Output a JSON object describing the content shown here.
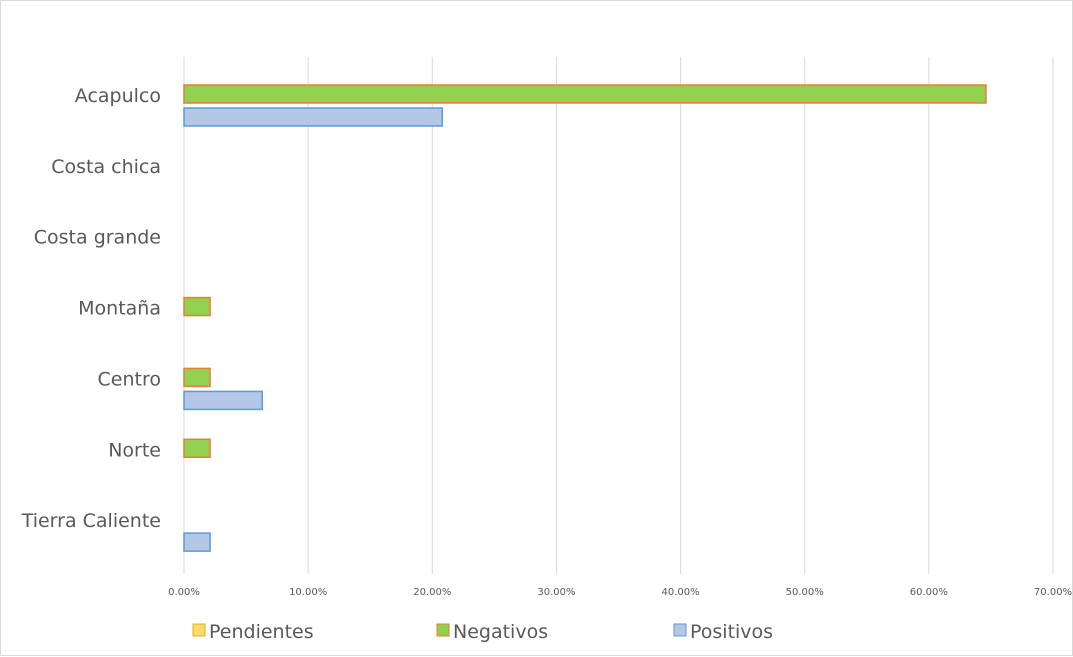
{
  "chart_data": {
    "type": "bar",
    "orientation": "horizontal",
    "categories": [
      "Acapulco",
      "Costa chica",
      "Costa grande",
      "Montaña",
      "Centro",
      "Norte",
      "Tierra Caliente"
    ],
    "series": [
      {
        "name": "Pendientes",
        "values": [
          0,
          0,
          0,
          0,
          0,
          0,
          0
        ],
        "color": "#FFD966",
        "border": "#E0B020"
      },
      {
        "name": "Negativos",
        "values": [
          0.646,
          0,
          0,
          0.021,
          0.021,
          0.021,
          0
        ],
        "color": "#92D050",
        "border": "#ED7D31"
      },
      {
        "name": "Positivos",
        "values": [
          0.208,
          0,
          0,
          0,
          0.063,
          0,
          0.021
        ],
        "color": "#B4C7E7",
        "border": "#5B9BD5"
      }
    ],
    "xlim": [
      0,
      0.7
    ],
    "x_ticks": [
      "0.00%",
      "10.00%",
      "20.00%",
      "30.00%",
      "40.00%",
      "50.00%",
      "60.00%",
      "70.00%"
    ],
    "title": "",
    "xlabel": "",
    "ylabel": "",
    "grid": "vertical",
    "legend": "bottom"
  }
}
